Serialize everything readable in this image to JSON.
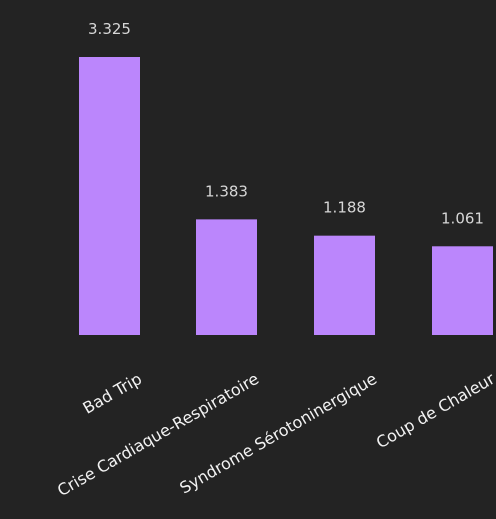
{
  "chart_data": {
    "type": "bar",
    "categories": [
      "Bad Trip",
      "Crise Cardiaque-Respiratoire",
      "Syndrome Sérotoninergique",
      "Coup de Chaleur"
    ],
    "values": [
      3.325,
      1.383,
      1.188,
      1.061
    ],
    "value_labels": [
      "3.325",
      "1.383",
      "1.188",
      "1.061"
    ],
    "title": "",
    "xlabel": "",
    "ylabel": "",
    "ylim": [
      0,
      3.325
    ],
    "grid": false,
    "legend": "none",
    "colors": {
      "background": "#232323",
      "bar": "#bb86fc",
      "value_text": "#d6d6d6",
      "category_text": "#f2f2f2"
    }
  }
}
